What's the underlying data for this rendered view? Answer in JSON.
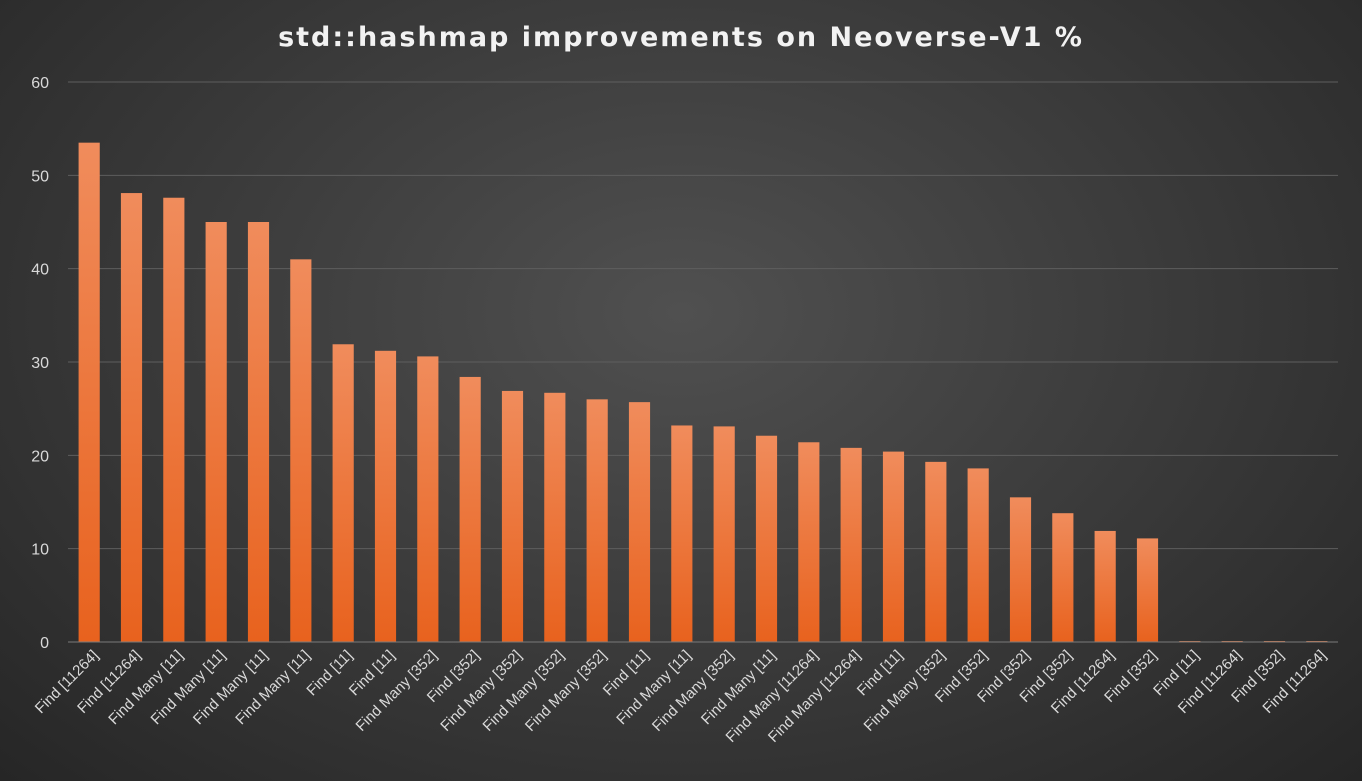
{
  "chart_data": {
    "type": "bar",
    "title": "std::hashmap improvements on Neoverse-V1 %",
    "xlabel": "",
    "ylabel": "",
    "ylim": [
      0,
      60
    ],
    "yticks": [
      0,
      10,
      20,
      30,
      40,
      50,
      60
    ],
    "grid": true,
    "legend": "none",
    "bar_color": "#ed7d31",
    "categories": [
      "Find [11264]",
      "Find [11264]",
      "Find Many [11]",
      "Find Many [11]",
      "Find Many [11]",
      "Find Many [11]",
      "Find [11]",
      "Find [11]",
      "Find Many [352]",
      "Find [352]",
      "Find Many [352]",
      "Find Many [352]",
      "Find Many [352]",
      "Find [11]",
      "Find Many [11]",
      "Find Many [352]",
      "Find Many [11]",
      "Find Many [11264]",
      "Find Many [11264]",
      "Find [11]",
      "Find Many [352]",
      "Find [352]",
      "Find [352]",
      "Find [352]",
      "Find [11264]",
      "Find [352]",
      "Find [11]",
      "Find [11264]",
      "Find [352]",
      "Find [11264]"
    ],
    "values": [
      53.5,
      48.1,
      47.6,
      45.0,
      45.0,
      41.0,
      31.9,
      31.2,
      30.6,
      28.4,
      26.9,
      26.7,
      26.0,
      25.7,
      23.2,
      23.1,
      22.1,
      21.4,
      20.8,
      20.4,
      19.3,
      18.6,
      15.5,
      13.8,
      11.9,
      11.1,
      0.1,
      0.1,
      0.1,
      0.1
    ]
  }
}
